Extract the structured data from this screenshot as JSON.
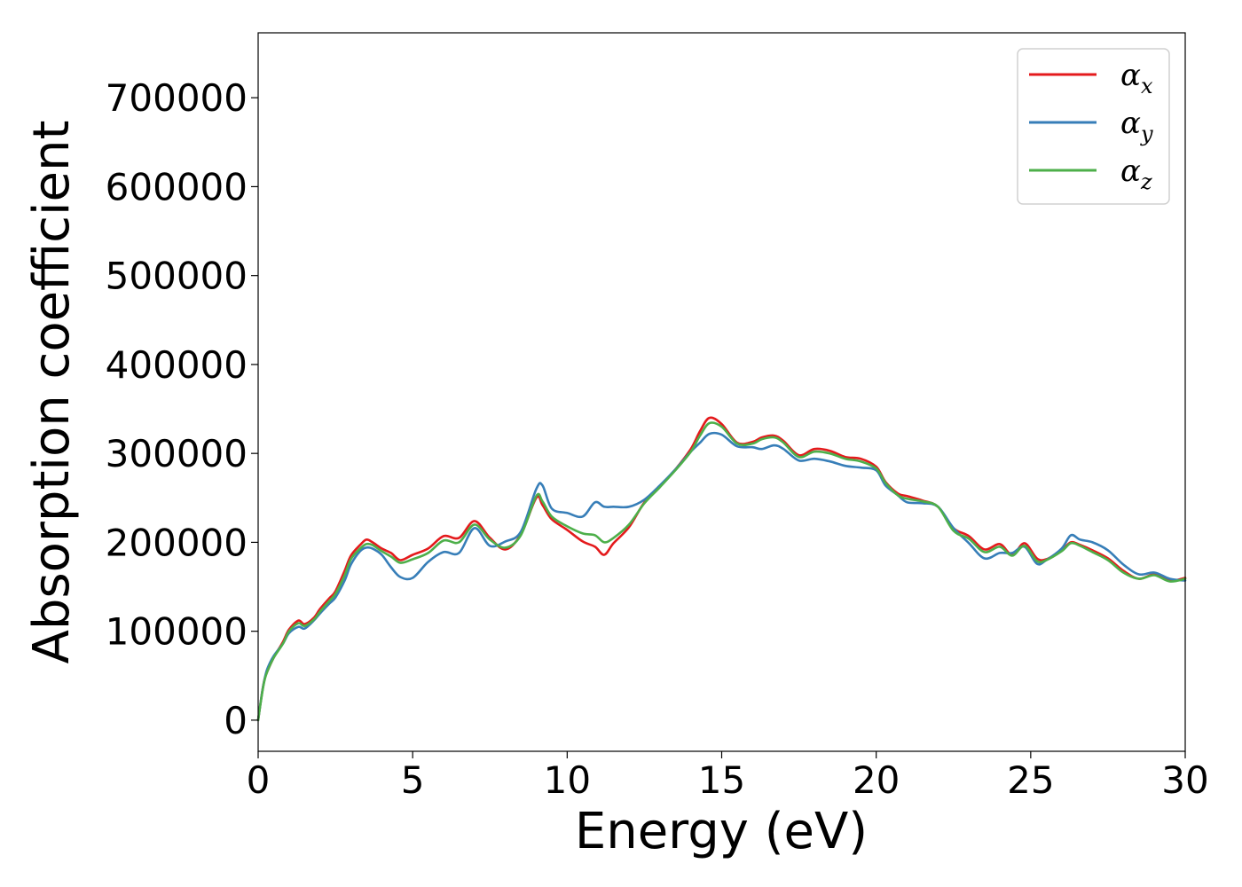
{
  "chart_data": {
    "type": "line",
    "title": "",
    "xlabel": "Energy (eV)",
    "ylabel": "Absorption coefficient",
    "xlim": [
      0,
      30
    ],
    "ylim": [
      -35000,
      773000
    ],
    "xticks": [
      0,
      5,
      10,
      15,
      20,
      25,
      30
    ],
    "xtick_labels": [
      "0",
      "5",
      "10",
      "15",
      "20",
      "25",
      "30"
    ],
    "yticks": [
      0,
      100000,
      200000,
      300000,
      400000,
      500000,
      600000,
      700000
    ],
    "ytick_labels": [
      "0",
      "100000",
      "200000",
      "300000",
      "400000",
      "500000",
      "600000",
      "700000"
    ],
    "grid": false,
    "legend_position": "top-right",
    "x": [
      0,
      0.1,
      0.2,
      0.3,
      0.5,
      0.8,
      1.0,
      1.3,
      1.5,
      1.8,
      2.0,
      2.3,
      2.5,
      2.8,
      3.0,
      3.3,
      3.5,
      3.7,
      4.0,
      4.3,
      4.6,
      5.0,
      5.5,
      6.0,
      6.5,
      7.0,
      7.5,
      8.0,
      8.5,
      9.0,
      9.2,
      9.5,
      10.0,
      10.5,
      10.9,
      11.2,
      11.5,
      12.0,
      12.5,
      13.0,
      13.5,
      14.0,
      14.3,
      14.6,
      15.0,
      15.5,
      16.0,
      16.3,
      16.7,
      17.0,
      17.5,
      18.0,
      18.5,
      19.0,
      19.5,
      20.0,
      20.3,
      20.7,
      21.0,
      21.5,
      22.0,
      22.5,
      23.0,
      23.5,
      24.0,
      24.4,
      24.8,
      25.2,
      25.5,
      26.0,
      26.3,
      26.6,
      27.0,
      27.5,
      28.0,
      28.5,
      29.0,
      29.5,
      30.0
    ],
    "series": [
      {
        "name": "α_x",
        "symbol": "α",
        "subscript": "x",
        "color": "#e41a1c",
        "values": [
          0,
          25000,
          45000,
          55000,
          70000,
          88000,
          102000,
          112000,
          108000,
          115000,
          125000,
          137000,
          145000,
          168000,
          185000,
          197000,
          203000,
          200000,
          193000,
          188000,
          180000,
          186000,
          193000,
          207000,
          205000,
          224000,
          205000,
          192000,
          209000,
          250000,
          242000,
          226000,
          214000,
          201000,
          195000,
          186000,
          199000,
          217000,
          245000,
          263000,
          282000,
          305000,
          325000,
          340000,
          333000,
          312000,
          313000,
          318000,
          320000,
          314000,
          298000,
          305000,
          303000,
          296000,
          294000,
          285000,
          268000,
          255000,
          252000,
          247000,
          240000,
          216000,
          207000,
          192000,
          198000,
          186000,
          199000,
          182000,
          181000,
          191000,
          200000,
          197000,
          191000,
          182000,
          168000,
          159000,
          164000,
          157000,
          160000
        ]
      },
      {
        "name": "α_y",
        "symbol": "α",
        "subscript": "y",
        "color": "#377eb8",
        "values": [
          0,
          25000,
          45000,
          58000,
          72000,
          86000,
          98000,
          105000,
          103000,
          112000,
          120000,
          131000,
          138000,
          157000,
          175000,
          190000,
          194000,
          193000,
          186000,
          172000,
          161000,
          160000,
          178000,
          189000,
          188000,
          216000,
          196000,
          201000,
          212000,
          260000,
          264000,
          238000,
          233000,
          229000,
          245000,
          240000,
          240000,
          240000,
          248000,
          264000,
          282000,
          302000,
          312000,
          322000,
          321000,
          308000,
          307000,
          305000,
          309000,
          305000,
          292000,
          294000,
          291000,
          286000,
          284000,
          281000,
          264000,
          253000,
          245000,
          244000,
          240000,
          216000,
          199000,
          182000,
          188000,
          188000,
          195000,
          176000,
          180000,
          193000,
          208000,
          203000,
          200000,
          191000,
          175000,
          164000,
          166000,
          159000,
          157000
        ]
      },
      {
        "name": "α_z",
        "symbol": "α",
        "subscript": "z",
        "color": "#4daf4a",
        "values": [
          0,
          24000,
          44000,
          55000,
          70000,
          86000,
          100000,
          109000,
          106000,
          113000,
          122000,
          134000,
          142000,
          163000,
          181000,
          193000,
          198000,
          197000,
          190000,
          184000,
          177000,
          181000,
          188000,
          202000,
          200000,
          220000,
          203000,
          194000,
          208000,
          252000,
          246000,
          229000,
          218000,
          210000,
          208000,
          200000,
          205000,
          220000,
          244000,
          262000,
          281000,
          302000,
          320000,
          334000,
          330000,
          311000,
          311000,
          316000,
          318000,
          312000,
          296000,
          302000,
          300000,
          294000,
          291000,
          283000,
          267000,
          253000,
          249000,
          246000,
          240000,
          213000,
          204000,
          189000,
          195000,
          185000,
          196000,
          179000,
          180000,
          190000,
          199000,
          196000,
          189000,
          180000,
          166000,
          159000,
          163000,
          156000,
          159000
        ]
      }
    ]
  }
}
